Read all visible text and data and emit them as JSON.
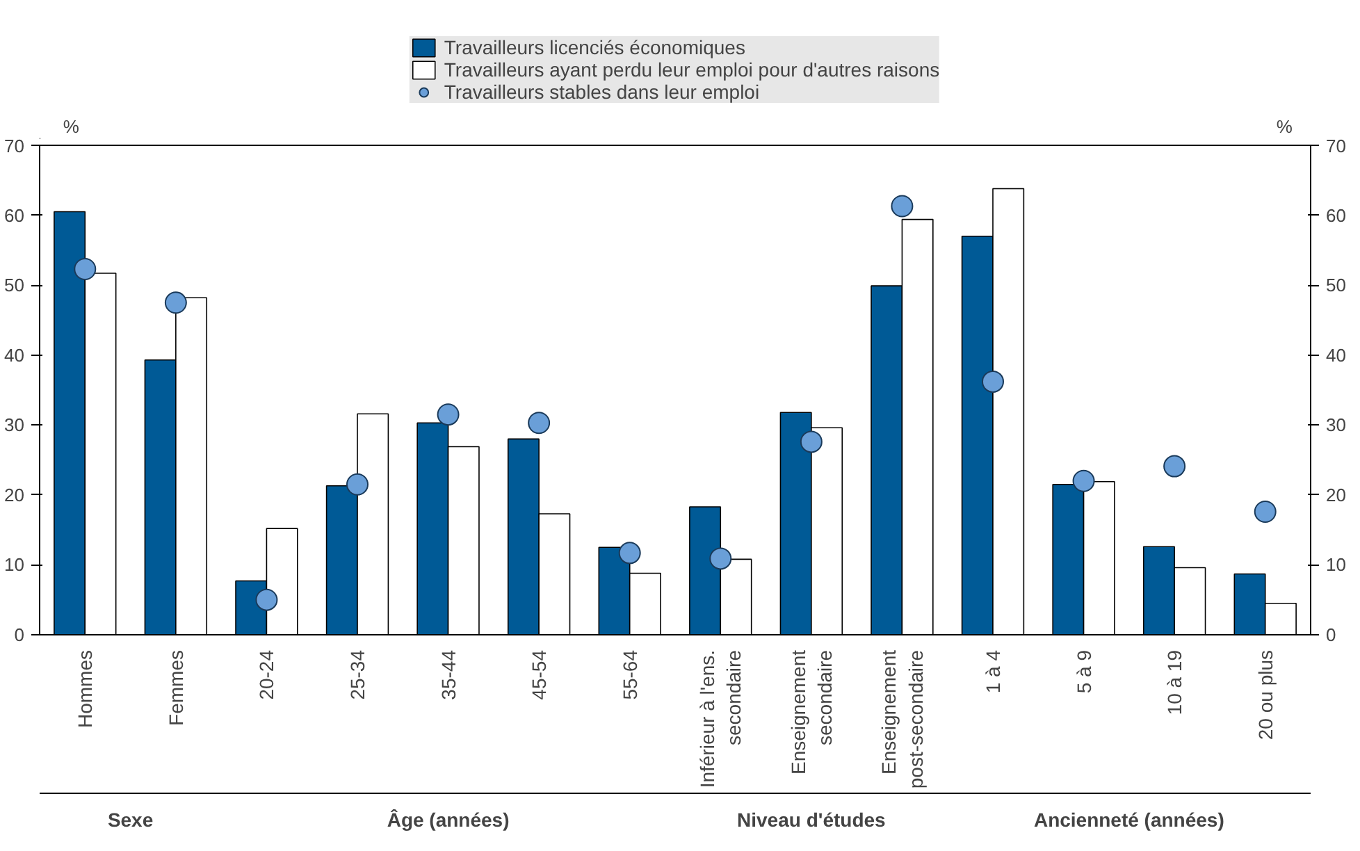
{
  "chart_data": {
    "type": "bar",
    "categories": [
      "Hommes",
      "Femmes",
      "20-24",
      "25-34",
      "35-44",
      "45-54",
      "55-64",
      "Inférieur à l'ens.\nsecondaire",
      "Enseignement\nsecondaire",
      "Enseignement\npost-secondaire",
      "1 à 4",
      "5 à 9",
      "10 à 19",
      "20 ou plus"
    ],
    "series": [
      {
        "name": "Travailleurs licenciés économiques",
        "color": "#005a96",
        "values": [
          60.5,
          39.3,
          7.7,
          21.3,
          30.3,
          28.0,
          12.5,
          18.3,
          31.8,
          49.9,
          57.0,
          21.5,
          12.6,
          8.7
        ]
      },
      {
        "name": "Travailleurs ayant perdu leur emploi pour d'autres raisons",
        "color": "#ffffff",
        "values": [
          51.7,
          48.2,
          15.2,
          31.6,
          26.9,
          17.3,
          8.8,
          10.8,
          29.6,
          59.4,
          63.8,
          21.9,
          9.6,
          4.5
        ]
      },
      {
        "name": "Travailleurs stables dans leur emploi",
        "type": "scatter",
        "marker": "circle",
        "color": "#6a9fd8",
        "values": [
          52.3,
          47.5,
          5.0,
          21.5,
          31.5,
          30.3,
          11.7,
          10.9,
          27.6,
          61.3,
          36.2,
          22.0,
          24.1,
          17.6
        ]
      }
    ],
    "annotations": [
      "Sexe",
      "Âge (années)",
      "Niveau d'études",
      "Ancienneté (années)"
    ],
    "ylabel": "%",
    "y2label": "%",
    "ylim": [
      0,
      70
    ],
    "yticks": [
      0,
      10,
      20,
      30,
      40,
      50,
      60,
      70
    ],
    "y2lim": [
      0,
      70
    ],
    "y2ticks": [
      0,
      10,
      20,
      30,
      40,
      50,
      60,
      70
    ],
    "legend": "top"
  }
}
